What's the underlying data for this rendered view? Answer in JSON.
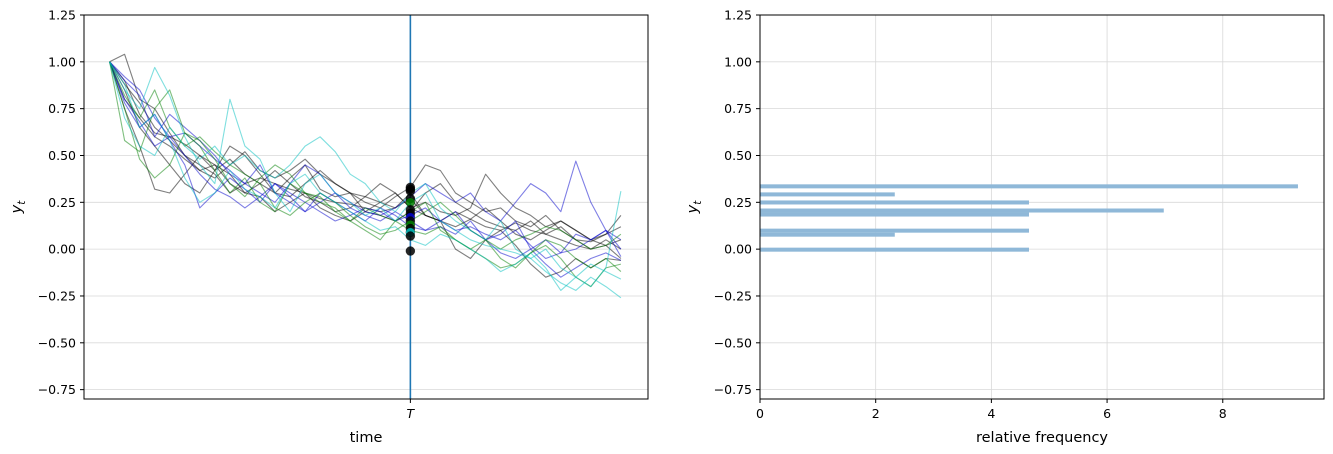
{
  "chart_data": [
    {
      "type": "line",
      "xlabel": "time",
      "ylabel": "y",
      "ylabel_subscript": "t",
      "xtick_label": "T",
      "ylim": [
        -0.8,
        1.25
      ],
      "xlim": [
        -1.7,
        35.8
      ],
      "yticks": [
        1.25,
        1.0,
        0.75,
        0.5,
        0.25,
        0.0,
        -0.25,
        -0.5,
        -0.75
      ],
      "ytick_labels": [
        "1.25",
        "1.00",
        "0.75",
        "0.50",
        "0.25",
        "0.00",
        "−0.25",
        "−0.50",
        "−0.75"
      ],
      "grid": "horizontal",
      "vline_x": 20,
      "vline_color": "#1f77b4",
      "line_colors": [
        "#000000",
        "#0000cc",
        "#008000",
        "#00bfbf"
      ],
      "series": [
        {
          "color": "#000000",
          "values": [
            1.0,
            1.04,
            0.8,
            0.75,
            0.62,
            0.5,
            0.45,
            0.4,
            0.3,
            0.35,
            0.38,
            0.35,
            0.32,
            0.3,
            0.27,
            0.25,
            0.24,
            0.22,
            0.2,
            0.22,
            0.3,
            0.18,
            0.15,
            0.2,
            0.16,
            0.12,
            0.1,
            0.14,
            0.1,
            0.08,
            0.12,
            0.05,
            0.04,
            0.08,
            0.12
          ]
        },
        {
          "color": "#000000",
          "values": [
            1.0,
            0.9,
            0.72,
            0.62,
            0.6,
            0.56,
            0.5,
            0.42,
            0.48,
            0.4,
            0.35,
            0.3,
            0.38,
            0.45,
            0.32,
            0.28,
            0.3,
            0.25,
            0.22,
            0.28,
            0.33,
            0.45,
            0.42,
            0.3,
            0.25,
            0.2,
            0.22,
            0.15,
            0.12,
            0.18,
            0.1,
            0.05,
            0.0,
            0.02,
            0.05
          ]
        },
        {
          "color": "#000000",
          "values": [
            1.0,
            0.85,
            0.65,
            0.55,
            0.45,
            0.35,
            0.3,
            0.42,
            0.55,
            0.5,
            0.4,
            0.3,
            0.28,
            0.35,
            0.42,
            0.35,
            0.3,
            0.28,
            0.25,
            0.22,
            0.27,
            0.18,
            0.15,
            0.12,
            0.16,
            0.22,
            0.15,
            0.08,
            0.05,
            0.1,
            0.15,
            0.1,
            0.05,
            0.08,
            0.18
          ]
        },
        {
          "color": "#000000",
          "values": [
            1.0,
            0.75,
            0.55,
            0.32,
            0.3,
            0.4,
            0.5,
            0.45,
            0.4,
            0.3,
            0.28,
            0.2,
            0.25,
            0.3,
            0.22,
            0.18,
            0.15,
            0.2,
            0.25,
            0.3,
            0.22,
            0.18,
            0.15,
            0.0,
            -0.05,
            0.05,
            0.1,
            0.02,
            -0.08,
            -0.15,
            -0.12,
            -0.05,
            -0.1,
            -0.05,
            -0.06
          ]
        },
        {
          "color": "#000000",
          "values": [
            1.0,
            0.8,
            0.7,
            0.6,
            0.55,
            0.48,
            0.42,
            0.38,
            0.45,
            0.52,
            0.42,
            0.38,
            0.42,
            0.48,
            0.4,
            0.35,
            0.3,
            0.2,
            0.18,
            0.15,
            0.2,
            0.3,
            0.35,
            0.25,
            0.2,
            0.15,
            0.12,
            0.1,
            0.15,
            0.08,
            0.05,
            0.02,
            0.0,
            0.05,
            0.0
          ]
        },
        {
          "color": "#000000",
          "values": [
            1.0,
            0.88,
            0.78,
            0.65,
            0.58,
            0.5,
            0.42,
            0.45,
            0.35,
            0.3,
            0.35,
            0.42,
            0.35,
            0.28,
            0.25,
            0.2,
            0.22,
            0.28,
            0.35,
            0.3,
            0.22,
            0.25,
            0.2,
            0.18,
            0.22,
            0.4,
            0.3,
            0.22,
            0.18,
            0.12,
            0.15,
            0.1,
            0.05,
            0.02,
            -0.05
          ]
        },
        {
          "color": "#0000cc",
          "values": [
            1.0,
            0.92,
            0.85,
            0.7,
            0.6,
            0.62,
            0.55,
            0.48,
            0.42,
            0.35,
            0.3,
            0.25,
            0.35,
            0.45,
            0.4,
            0.3,
            0.25,
            0.2,
            0.18,
            0.22,
            0.28,
            0.35,
            0.3,
            0.25,
            0.3,
            0.2,
            0.15,
            0.25,
            0.35,
            0.3,
            0.2,
            0.47,
            0.25,
            0.1,
            0.05
          ]
        },
        {
          "color": "#0000cc",
          "values": [
            1.0,
            0.8,
            0.68,
            0.55,
            0.6,
            0.5,
            0.4,
            0.32,
            0.28,
            0.22,
            0.28,
            0.35,
            0.3,
            0.25,
            0.2,
            0.15,
            0.18,
            0.22,
            0.2,
            0.15,
            0.18,
            0.22,
            0.15,
            0.1,
            0.12,
            0.08,
            0.05,
            0.1,
            0.02,
            -0.05,
            -0.02,
            0.0,
            0.05,
            0.1,
            0.0
          ]
        },
        {
          "color": "#0000cc",
          "values": [
            1.0,
            0.78,
            0.65,
            0.72,
            0.58,
            0.45,
            0.22,
            0.3,
            0.38,
            0.32,
            0.25,
            0.35,
            0.28,
            0.2,
            0.25,
            0.3,
            0.22,
            0.18,
            0.15,
            0.2,
            0.15,
            0.1,
            0.12,
            0.08,
            0.15,
            0.05,
            -0.02,
            -0.05,
            0.0,
            -0.08,
            -0.15,
            -0.1,
            -0.05,
            -0.02,
            -0.06
          ]
        },
        {
          "color": "#0000cc",
          "values": [
            1.0,
            0.9,
            0.82,
            0.6,
            0.72,
            0.65,
            0.58,
            0.5,
            0.4,
            0.35,
            0.45,
            0.3,
            0.25,
            0.2,
            0.3,
            0.25,
            0.2,
            0.15,
            0.22,
            0.18,
            0.12,
            0.1,
            0.15,
            0.2,
            0.1,
            0.05,
            0.08,
            0.15,
            0.0,
            0.05,
            -0.02,
            0.08,
            0.05,
            0.1,
            -0.04
          ]
        },
        {
          "color": "#008000",
          "values": [
            1.0,
            0.58,
            0.52,
            0.75,
            0.85,
            0.62,
            0.58,
            0.48,
            0.35,
            0.28,
            0.38,
            0.45,
            0.4,
            0.3,
            0.25,
            0.22,
            0.15,
            0.1,
            0.05,
            0.15,
            0.1,
            0.08,
            0.12,
            0.05,
            0.0,
            0.05,
            -0.05,
            -0.1,
            -0.02,
            0.05,
            0.02,
            -0.05,
            -0.1,
            -0.05,
            -0.12
          ]
        },
        {
          "color": "#008000",
          "values": [
            1.0,
            0.75,
            0.48,
            0.38,
            0.45,
            0.62,
            0.55,
            0.42,
            0.3,
            0.38,
            0.25,
            0.2,
            0.35,
            0.3,
            0.28,
            0.2,
            0.15,
            0.22,
            0.18,
            0.15,
            0.2,
            0.25,
            0.1,
            0.05,
            0.0,
            -0.05,
            -0.1,
            -0.08,
            -0.02,
            0.02,
            -0.05,
            -0.15,
            -0.2,
            -0.1,
            -0.08
          ]
        },
        {
          "color": "#008000",
          "values": [
            1.0,
            0.82,
            0.7,
            0.85,
            0.65,
            0.55,
            0.6,
            0.52,
            0.45,
            0.4,
            0.35,
            0.22,
            0.18,
            0.25,
            0.3,
            0.25,
            0.18,
            0.12,
            0.08,
            0.1,
            0.15,
            0.2,
            0.25,
            0.18,
            0.1,
            0.05,
            0.0,
            0.05,
            0.08,
            0.12,
            0.1,
            0.05,
            0.0,
            0.02,
            0.08
          ]
        },
        {
          "color": "#00bfbf",
          "values": [
            1.0,
            0.85,
            0.75,
            0.97,
            0.82,
            0.6,
            0.45,
            0.35,
            0.8,
            0.55,
            0.48,
            0.3,
            0.2,
            0.35,
            0.4,
            0.3,
            0.25,
            0.18,
            0.22,
            0.15,
            0.25,
            0.3,
            0.15,
            0.1,
            0.05,
            0.02,
            0.0,
            -0.02,
            -0.05,
            0.0,
            -0.1,
            -0.15,
            -0.2,
            -0.1,
            0.31
          ]
        },
        {
          "color": "#00bfbf",
          "values": [
            1.0,
            0.7,
            0.55,
            0.5,
            0.65,
            0.55,
            0.48,
            0.55,
            0.45,
            0.5,
            0.42,
            0.38,
            0.45,
            0.55,
            0.6,
            0.52,
            0.4,
            0.35,
            0.25,
            0.2,
            0.3,
            0.35,
            0.22,
            0.15,
            0.1,
            0.05,
            0.15,
            0.0,
            -0.05,
            -0.12,
            -0.18,
            -0.22,
            -0.15,
            -0.2,
            -0.26
          ]
        },
        {
          "color": "#00bfbf",
          "values": [
            1.0,
            0.88,
            0.65,
            0.72,
            0.58,
            0.38,
            0.25,
            0.3,
            0.42,
            0.32,
            0.28,
            0.22,
            0.35,
            0.4,
            0.3,
            0.25,
            0.2,
            0.15,
            0.1,
            0.12,
            0.05,
            0.02,
            0.08,
            0.05,
            0.0,
            -0.05,
            -0.12,
            -0.08,
            -0.02,
            -0.1,
            -0.22,
            -0.15,
            -0.08,
            -0.12,
            -0.16
          ]
        }
      ],
      "points": [
        {
          "y": 0.33,
          "color": "#000000"
        },
        {
          "y": 0.32,
          "color": "#000000"
        },
        {
          "y": 0.31,
          "color": "#000000"
        },
        {
          "y": 0.27,
          "color": "#000000"
        },
        {
          "y": 0.25,
          "color": "#008000"
        },
        {
          "y": 0.21,
          "color": "#000000"
        },
        {
          "y": 0.19,
          "color": "#000000"
        },
        {
          "y": 0.17,
          "color": "#0000cc"
        },
        {
          "y": 0.15,
          "color": "#000000"
        },
        {
          "y": 0.13,
          "color": "#008000"
        },
        {
          "y": 0.11,
          "color": "#000000"
        },
        {
          "y": 0.09,
          "color": "#00bfbf"
        },
        {
          "y": 0.07,
          "color": "#000000"
        },
        {
          "y": -0.01,
          "color": "#000000"
        }
      ]
    },
    {
      "type": "bar",
      "orientation": "horizontal",
      "xlabel": "relative frequency",
      "ylabel": "y",
      "ylabel_subscript": "t",
      "xlim": [
        0,
        9.75
      ],
      "ylim": [
        -0.8,
        1.25
      ],
      "xticks": [
        0,
        2,
        4,
        6,
        8
      ],
      "xtick_labels": [
        "0",
        "2",
        "4",
        "6",
        "8"
      ],
      "yticks": [
        1.25,
        1.0,
        0.75,
        0.5,
        0.25,
        0.0,
        -0.25,
        -0.5,
        -0.75
      ],
      "ytick_labels": [
        "1.25",
        "1.00",
        "0.75",
        "0.50",
        "0.25",
        "0.00",
        "−0.25",
        "−0.50",
        "−0.75"
      ],
      "grid": "both",
      "bar_color": "#8fb8d8",
      "bin_height": 0.0215,
      "bins": [
        {
          "y_low": -0.0135,
          "value": 4.65
        },
        {
          "y_low": 0.0665,
          "value": 2.33
        },
        {
          "y_low": 0.088,
          "value": 4.65
        },
        {
          "y_low": 0.174,
          "value": 4.65
        },
        {
          "y_low": 0.1955,
          "value": 6.98
        },
        {
          "y_low": 0.2385,
          "value": 4.65
        },
        {
          "y_low": 0.2815,
          "value": 2.33
        },
        {
          "y_low": 0.3245,
          "value": 9.3
        }
      ]
    }
  ]
}
